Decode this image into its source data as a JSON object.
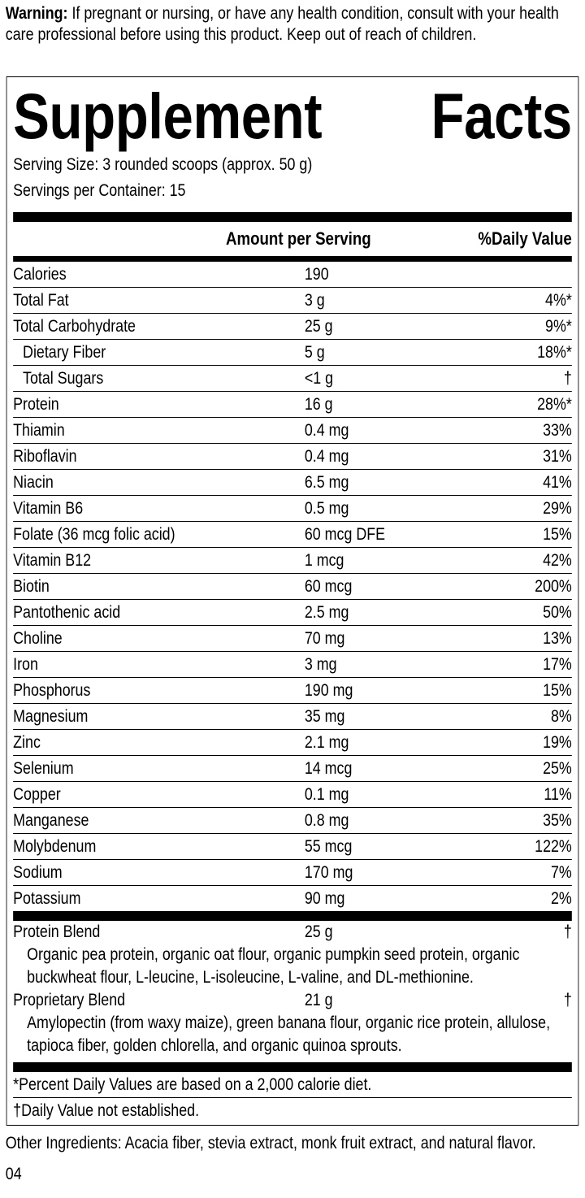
{
  "warning": {
    "label": "Warning:",
    "text": " If pregnant or nursing, or have any health condition, consult with your health care professional before using this product. Keep out of reach of children."
  },
  "title_left": "Supplement",
  "title_right": "Facts",
  "serving_size": "Serving Size: 3 rounded scoops (approx. 50 g)",
  "servings_per_container": "Servings per Container: 15",
  "header": {
    "amount": "Amount per Serving",
    "dv": "%Daily Value"
  },
  "nutrients": [
    {
      "name": "Calories",
      "amount": "190",
      "dv": ""
    },
    {
      "name": "Total Fat",
      "amount": "3 g",
      "dv": "4%*"
    },
    {
      "name": "Total Carbohydrate",
      "amount": "25 g",
      "dv": "9%*"
    },
    {
      "name": "Dietary Fiber",
      "amount": "5 g",
      "dv": "18%*"
    },
    {
      "name": "Total Sugars",
      "amount": "<1 g",
      "dv": "†"
    },
    {
      "name": "Protein",
      "amount": "16 g",
      "dv": "28%*"
    },
    {
      "name": "Thiamin",
      "amount": "0.4 mg",
      "dv": "33%"
    },
    {
      "name": "Riboflavin",
      "amount": "0.4 mg",
      "dv": "31%"
    },
    {
      "name": "Niacin",
      "amount": "6.5 mg",
      "dv": "41%"
    },
    {
      "name": "Vitamin B6",
      "amount": "0.5 mg",
      "dv": "29%"
    },
    {
      "name": "Folate (36 mcg folic acid)",
      "amount": "60 mcg DFE",
      "dv": "15%"
    },
    {
      "name": "Vitamin B12",
      "amount": "1 mcg",
      "dv": "42%"
    },
    {
      "name": "Biotin",
      "amount": "60 mcg",
      "dv": "200%"
    },
    {
      "name": "Pantothenic acid",
      "amount": "2.5 mg",
      "dv": "50%"
    },
    {
      "name": "Choline",
      "amount": "70 mg",
      "dv": "13%"
    },
    {
      "name": "Iron",
      "amount": "3 mg",
      "dv": "17%"
    },
    {
      "name": "Phosphorus",
      "amount": "190 mg",
      "dv": "15%"
    },
    {
      "name": "Magnesium",
      "amount": "35 mg",
      "dv": "8%"
    },
    {
      "name": "Zinc",
      "amount": "2.1 mg",
      "dv": "19%"
    },
    {
      "name": "Selenium",
      "amount": "14 mcg",
      "dv": "25%"
    },
    {
      "name": "Copper",
      "amount": "0.1 mg",
      "dv": "11%"
    },
    {
      "name": "Manganese",
      "amount": "0.8 mg",
      "dv": "35%"
    },
    {
      "name": "Molybdenum",
      "amount": "55 mcg",
      "dv": "122%"
    },
    {
      "name": "Sodium",
      "amount": "170 mg",
      "dv": "7%"
    },
    {
      "name": "Potassium",
      "amount": "90 mg",
      "dv": "2%"
    }
  ],
  "blends": [
    {
      "name": "Protein Blend",
      "amount": "25 g",
      "dv": "†",
      "description": "Organic pea protein, organic oat flour, organic pumpkin seed protein, organic buckwheat flour, L-leucine, L-isoleucine, L-valine, and DL-methionine."
    },
    {
      "name": "Proprietary Blend",
      "amount": "21 g",
      "dv": "†",
      "description": "Amylopectin (from waxy maize), green banana flour, organic rice protein, allulose, tapioca fiber, golden chlorella, and organic quinoa sprouts."
    }
  ],
  "footnotes": [
    "*Percent Daily Values are based on a 2,000 calorie diet.",
    "†Daily Value not established."
  ],
  "other_ingredients": "Other Ingredients: Acacia fiber, stevia extract, monk fruit extract, and natural flavor.",
  "code": "04"
}
